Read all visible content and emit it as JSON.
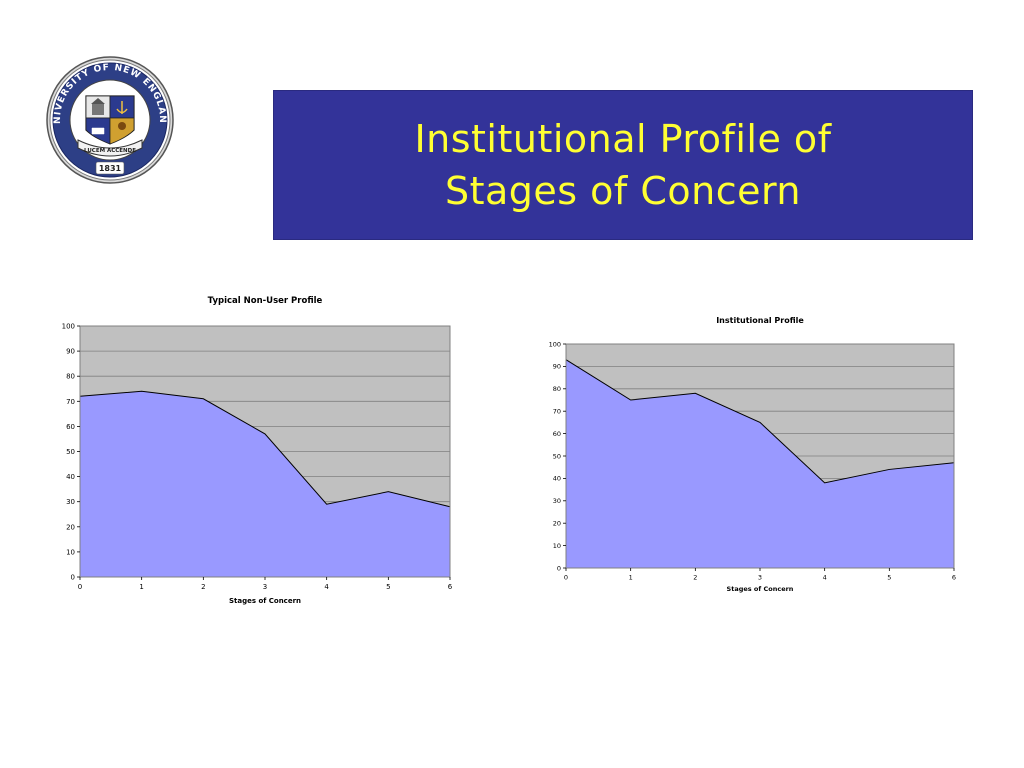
{
  "slide": {
    "title_line1": "Institutional Profile of",
    "title_line2": "Stages of Concern",
    "title_bg_color": "#333399",
    "title_text_color": "#ffff33"
  },
  "logo": {
    "ring_text": "UNIVERSITY OF NEW ENGLAND",
    "motto": "LUCEM ACCENDE",
    "year": "1831"
  },
  "colors": {
    "area_fill": "#9999ff",
    "plot_bg": "#c0c0c0",
    "gridline": "#808080"
  },
  "chart_data": [
    {
      "type": "area",
      "title": "Typical Non-User Profile",
      "xlabel": "Stages of Concern",
      "ylabel": "",
      "x": [
        0,
        1,
        2,
        3,
        4,
        5,
        6
      ],
      "values": [
        72,
        74,
        71,
        57,
        29,
        34,
        28
      ],
      "xticks": [
        "0",
        "1",
        "2",
        "3",
        "4",
        "5",
        "6"
      ],
      "yticks": [
        "0",
        "10",
        "20",
        "30",
        "40",
        "50",
        "60",
        "70",
        "80",
        "90",
        "100"
      ],
      "ylim": [
        0,
        100
      ],
      "xlim": [
        0,
        6
      ],
      "grid": true,
      "legend": "none"
    },
    {
      "type": "area",
      "title": "Institutional Profile",
      "xlabel": "Stages of Concern",
      "ylabel": "",
      "x": [
        0,
        1,
        2,
        3,
        4,
        5,
        6
      ],
      "values": [
        93,
        75,
        78,
        65,
        38,
        44,
        47
      ],
      "xticks": [
        "0",
        "1",
        "2",
        "3",
        "4",
        "5",
        "6"
      ],
      "yticks": [
        "0",
        "10",
        "20",
        "30",
        "40",
        "50",
        "60",
        "70",
        "80",
        "90",
        "100"
      ],
      "ylim": [
        0,
        100
      ],
      "xlim": [
        0,
        6
      ],
      "grid": true,
      "legend": "none"
    }
  ]
}
